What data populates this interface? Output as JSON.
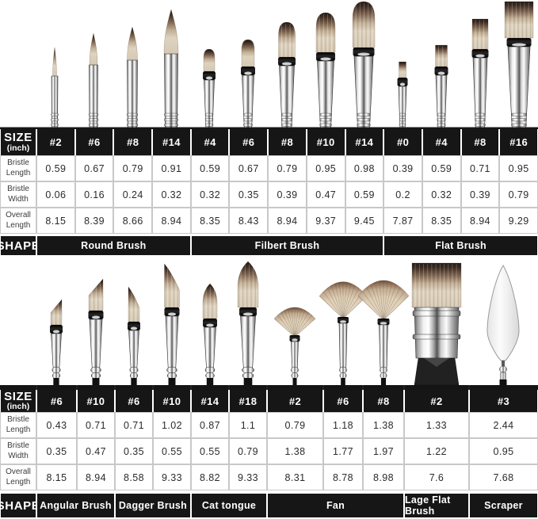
{
  "colors": {
    "table_black": "#161616",
    "grid_line": "#c8c8c8",
    "background": "#ffffff",
    "bristle_cream": "#ddd2be",
    "bristle_dark_tip": "#2f241b",
    "ferrule_chrome": "#d9d9d9",
    "handle_black": "#1c1c1c",
    "scraper_blade": "#f0f0f0",
    "text_white": "#ffffff",
    "text_dark": "#2b2b2b"
  },
  "chart_data": [
    {
      "type": "table",
      "group": "top",
      "size_header": {
        "title": "SIZE",
        "unit": "(inch)"
      },
      "sizes": [
        "#2",
        "#6",
        "#8",
        "#14",
        "#4",
        "#6",
        "#8",
        "#10",
        "#14",
        "#0",
        "#4",
        "#8",
        "#16"
      ],
      "row_labels": [
        "Bristle Length",
        "Bristle Width",
        "Overall Length"
      ],
      "rows": [
        [
          "0.59",
          "0.67",
          "0.79",
          "0.91",
          "0.59",
          "0.67",
          "0.79",
          "0.95",
          "0.98",
          "0.39",
          "0.59",
          "0.71",
          "0.95"
        ],
        [
          "0.06",
          "0.16",
          "0.24",
          "0.32",
          "0.32",
          "0.35",
          "0.39",
          "0.47",
          "0.59",
          "0.2",
          "0.32",
          "0.39",
          "0.79"
        ],
        [
          "8.15",
          "8.39",
          "8.66",
          "8.94",
          "8.35",
          "8.43",
          "8.94",
          "9.37",
          "9.45",
          "7.87",
          "8.35",
          "8.94",
          "9.29"
        ]
      ],
      "shape_header": "SHAPE",
      "shape_groups": [
        {
          "label": "Round Brush",
          "span": 4,
          "sizes": [
            "#2",
            "#6",
            "#8",
            "#14"
          ]
        },
        {
          "label": "Filbert Brush",
          "span": 5,
          "sizes": [
            "#4",
            "#6",
            "#8",
            "#10",
            "#14"
          ]
        },
        {
          "label": "Flat Brush",
          "span": 4,
          "sizes": [
            "#0",
            "#4",
            "#8",
            "#16"
          ]
        }
      ],
      "brushes": [
        {
          "shape": "round",
          "size": "#2"
        },
        {
          "shape": "round",
          "size": "#6"
        },
        {
          "shape": "round",
          "size": "#8"
        },
        {
          "shape": "round",
          "size": "#14"
        },
        {
          "shape": "filbert",
          "size": "#4"
        },
        {
          "shape": "filbert",
          "size": "#6"
        },
        {
          "shape": "filbert",
          "size": "#8"
        },
        {
          "shape": "filbert",
          "size": "#10"
        },
        {
          "shape": "filbert",
          "size": "#14"
        },
        {
          "shape": "flat",
          "size": "#0"
        },
        {
          "shape": "flat",
          "size": "#4"
        },
        {
          "shape": "flat",
          "size": "#8"
        },
        {
          "shape": "flat",
          "size": "#16"
        }
      ]
    },
    {
      "type": "table",
      "group": "bottom",
      "size_header": {
        "title": "SIZE",
        "unit": "(inch)"
      },
      "sizes": [
        "#6",
        "#10",
        "#6",
        "#10",
        "#14",
        "#18",
        "#2",
        "#6",
        "#8",
        "#2",
        "#3"
      ],
      "row_labels": [
        "Bristle Length",
        "Bristle Width",
        "Overall Length"
      ],
      "rows": [
        [
          "0.43",
          "0.71",
          "0.71",
          "1.02",
          "0.87",
          "1.1",
          "0.79",
          "1.18",
          "1.38",
          "1.33",
          "2.44"
        ],
        [
          "0.35",
          "0.47",
          "0.35",
          "0.55",
          "0.55",
          "0.79",
          "1.38",
          "1.77",
          "1.97",
          "1.22",
          "0.95"
        ],
        [
          "8.15",
          "8.94",
          "8.58",
          "9.33",
          "8.82",
          "9.33",
          "8.31",
          "8.78",
          "8.98",
          "7.6",
          "7.68"
        ]
      ],
      "shape_header": "SHAPE",
      "shape_groups": [
        {
          "label": "Angular Brush",
          "span": 2,
          "sizes": [
            "#6",
            "#10"
          ]
        },
        {
          "label": "Dagger Brush",
          "span": 2,
          "sizes": [
            "#6",
            "#10"
          ]
        },
        {
          "label": "Cat tongue",
          "span": 2,
          "sizes": [
            "#14",
            "#18"
          ]
        },
        {
          "label": "Fan",
          "span": 3,
          "sizes": [
            "#2",
            "#6",
            "#8"
          ]
        },
        {
          "label": "Lage Flat Brush",
          "span": 1,
          "sizes": [
            "#2"
          ]
        },
        {
          "label": "Scraper",
          "span": 1,
          "sizes": [
            "#3"
          ]
        }
      ],
      "brushes": [
        {
          "shape": "angular",
          "size": "#6"
        },
        {
          "shape": "angular",
          "size": "#10"
        },
        {
          "shape": "dagger",
          "size": "#6"
        },
        {
          "shape": "dagger",
          "size": "#10"
        },
        {
          "shape": "cat-tongue",
          "size": "#14"
        },
        {
          "shape": "cat-tongue",
          "size": "#18"
        },
        {
          "shape": "fan",
          "size": "#2"
        },
        {
          "shape": "fan",
          "size": "#6"
        },
        {
          "shape": "fan",
          "size": "#8"
        },
        {
          "shape": "large-flat",
          "size": "#2"
        },
        {
          "shape": "scraper",
          "size": "#3"
        }
      ]
    }
  ]
}
